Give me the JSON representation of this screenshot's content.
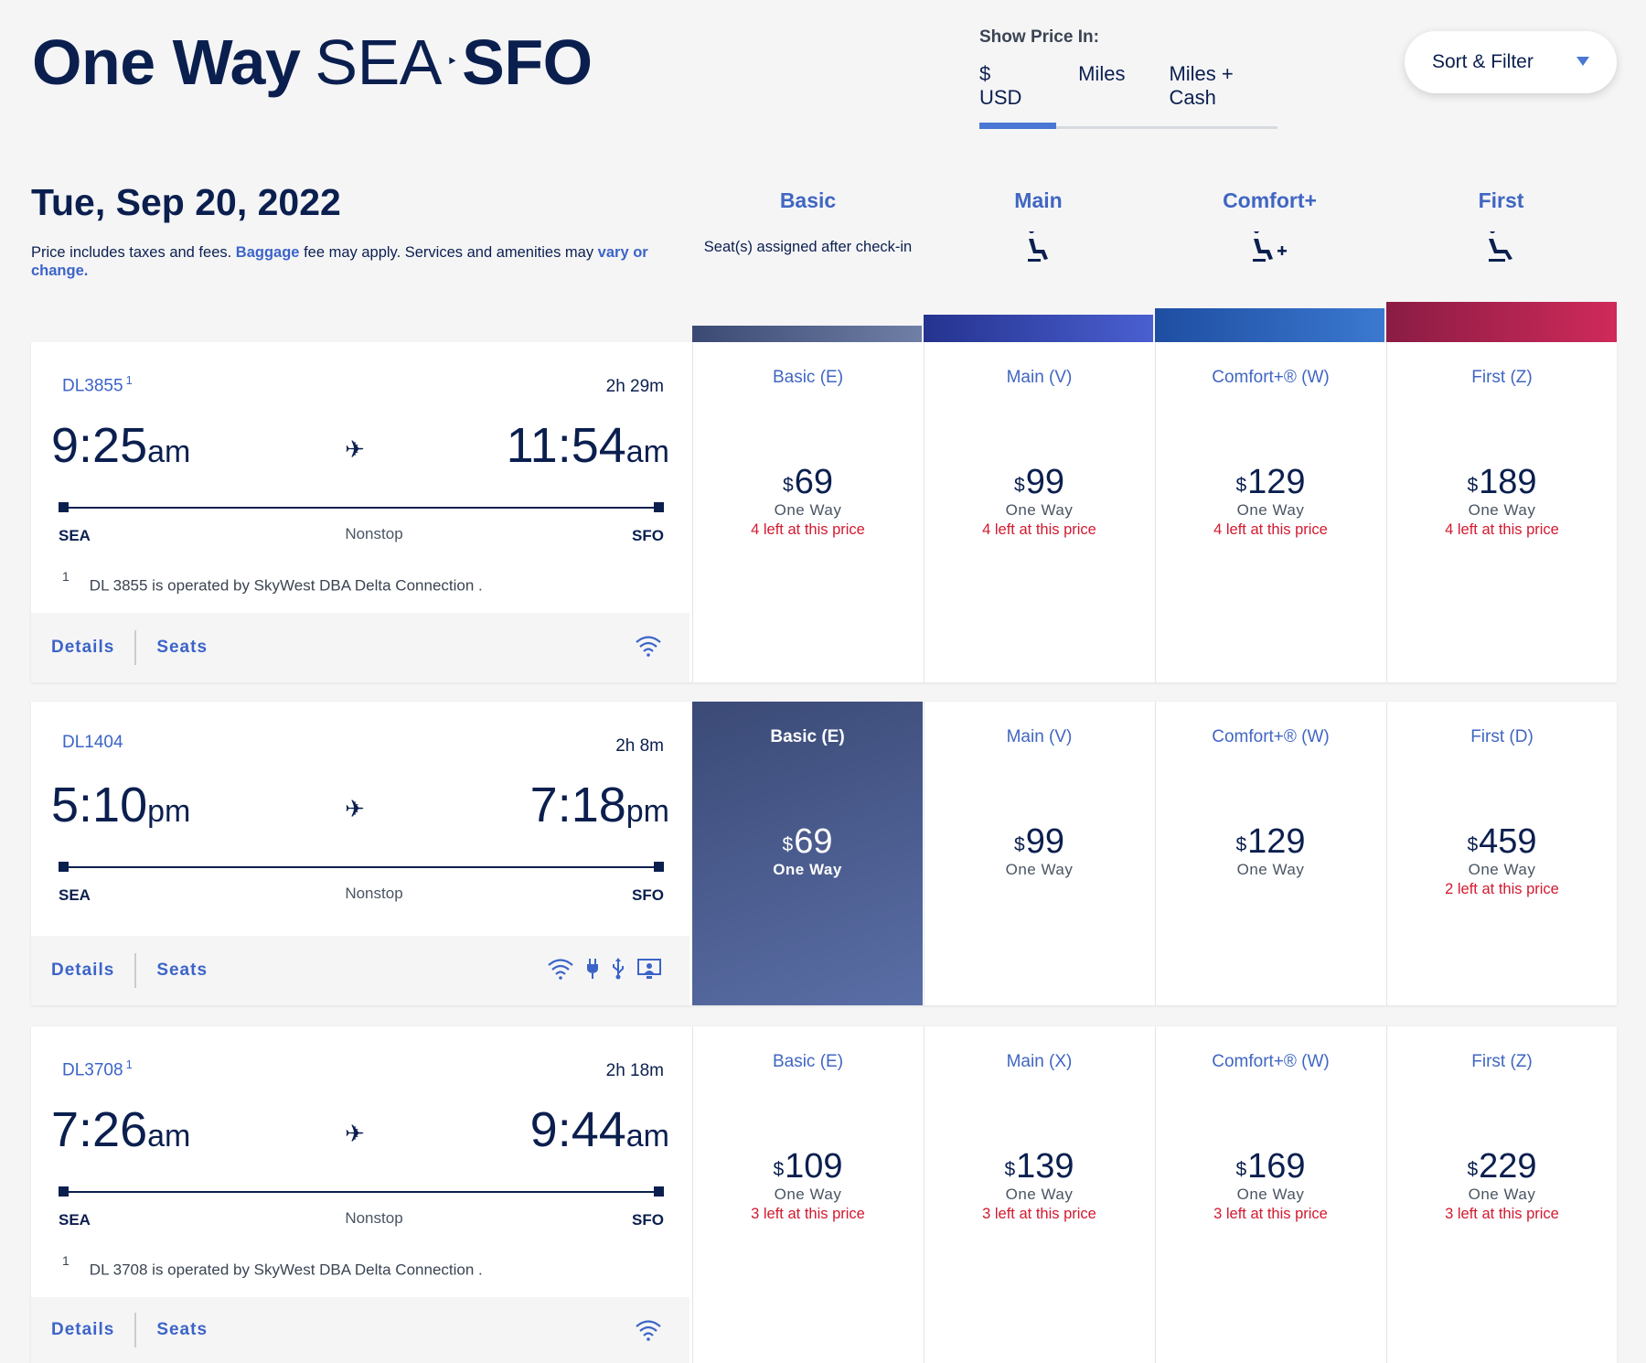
{
  "header": {
    "title_bold": "One Way",
    "origin": "SEA",
    "destination": "SFO",
    "arrow": "‣"
  },
  "price_toggle": {
    "label": "Show Price In:",
    "tabs": [
      {
        "label": "$ USD",
        "active": true
      },
      {
        "label": "Miles",
        "active": false
      },
      {
        "label": "Miles + Cash",
        "active": false
      }
    ]
  },
  "sort_filter": {
    "label": "Sort & Filter",
    "icon": "caret-down-icon"
  },
  "date": "Tue, Sep 20, 2022",
  "disclaimer": {
    "part1": "Price includes taxes and fees. ",
    "baggage_link": "Baggage",
    "part2": " fee may apply. Services and amenities may ",
    "vary_link": "vary or change."
  },
  "fare_columns": [
    {
      "name": "Basic",
      "note": "Seat(s) assigned after check-in",
      "icon": "",
      "bar_color": "#4b5a80"
    },
    {
      "name": "Main",
      "note": "",
      "icon": "seat-icon",
      "bar_color": "#3346a8"
    },
    {
      "name": "Comfort+",
      "note": "",
      "icon": "seat-plus-icon",
      "bar_color": "#2d5cb8"
    },
    {
      "name": "First",
      "note": "",
      "icon": "seat-icon",
      "bar_color": "#b32355"
    }
  ],
  "flights": [
    {
      "number": "DL3855",
      "footnote": "1",
      "duration": "2h 29m",
      "dep_time": "9:25",
      "dep_ampm": "am",
      "arr_time": "11:54",
      "arr_ampm": "am",
      "from": "SEA",
      "to": "SFO",
      "stops": "Nonstop",
      "operated_by": "DL 3855 is operated by SkyWest DBA Delta Connection .",
      "details_label": "Details",
      "seats_label": "Seats",
      "amenities": [
        "wifi-icon"
      ],
      "fares": [
        {
          "class": "Basic (E)",
          "currency": "$",
          "amount": "69",
          "type": "One Way",
          "availability": "4 left at this price",
          "selected": false
        },
        {
          "class": "Main (V)",
          "currency": "$",
          "amount": "99",
          "type": "One Way",
          "availability": "4 left at this price",
          "selected": false
        },
        {
          "class": "Comfort+® (W)",
          "currency": "$",
          "amount": "129",
          "type": "One Way",
          "availability": "4 left at this price",
          "selected": false
        },
        {
          "class": "First (Z)",
          "currency": "$",
          "amount": "189",
          "type": "One Way",
          "availability": "4 left at this price",
          "selected": false
        }
      ]
    },
    {
      "number": "DL1404",
      "footnote": "",
      "duration": "2h 8m",
      "dep_time": "5:10",
      "dep_ampm": "pm",
      "arr_time": "7:18",
      "arr_ampm": "pm",
      "from": "SEA",
      "to": "SFO",
      "stops": "Nonstop",
      "operated_by": "",
      "details_label": "Details",
      "seats_label": "Seats",
      "amenities": [
        "wifi-icon",
        "power-plug-icon",
        "usb-icon",
        "seatback-screen-icon"
      ],
      "fares": [
        {
          "class": "Basic (E)",
          "currency": "$",
          "amount": "69",
          "type": "One Way",
          "availability": "",
          "selected": true
        },
        {
          "class": "Main (V)",
          "currency": "$",
          "amount": "99",
          "type": "One Way",
          "availability": "",
          "selected": false
        },
        {
          "class": "Comfort+® (W)",
          "currency": "$",
          "amount": "129",
          "type": "One Way",
          "availability": "",
          "selected": false
        },
        {
          "class": "First (D)",
          "currency": "$",
          "amount": "459",
          "type": "One Way",
          "availability": "2 left at this price",
          "selected": false
        }
      ]
    },
    {
      "number": "DL3708",
      "footnote": "1",
      "duration": "2h 18m",
      "dep_time": "7:26",
      "dep_ampm": "am",
      "arr_time": "9:44",
      "arr_ampm": "am",
      "from": "SEA",
      "to": "SFO",
      "stops": "Nonstop",
      "operated_by": "DL 3708 is operated by SkyWest DBA Delta Connection .",
      "details_label": "Details",
      "seats_label": "Seats",
      "amenities": [
        "wifi-icon"
      ],
      "fares": [
        {
          "class": "Basic (E)",
          "currency": "$",
          "amount": "109",
          "type": "One Way",
          "availability": "3 left at this price",
          "selected": false
        },
        {
          "class": "Main (X)",
          "currency": "$",
          "amount": "139",
          "type": "One Way",
          "availability": "3 left at this price",
          "selected": false
        },
        {
          "class": "Comfort+® (W)",
          "currency": "$",
          "amount": "169",
          "type": "One Way",
          "availability": "3 left at this price",
          "selected": false
        },
        {
          "class": "First (Z)",
          "currency": "$",
          "amount": "229",
          "type": "One Way",
          "availability": "3 left at this price",
          "selected": false
        }
      ]
    }
  ]
}
